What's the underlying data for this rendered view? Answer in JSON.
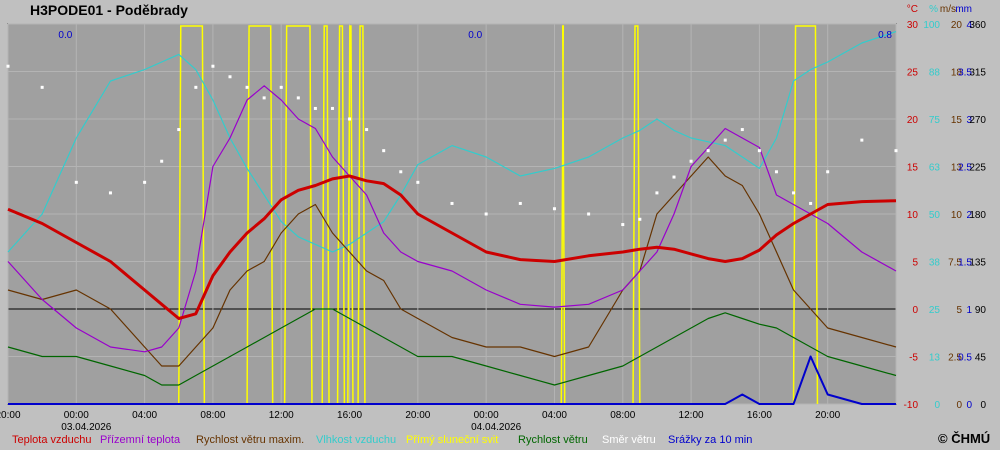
{
  "title": "H3PODE01 - Poděbrady",
  "copyright": "© ČHMÚ",
  "axis_heads": {
    "t": "°C",
    "h": "%",
    "w": "m/s",
    "r": "mm"
  },
  "colors": {
    "temp": "#cc0000",
    "ground": "#9900cc",
    "wind_max": "#663300",
    "humidity": "#33cccc",
    "sun": "#ffff00",
    "wind": "#006600",
    "dir": "#ffffff",
    "rain": "#0000cc",
    "bg": "#a0a0a0"
  },
  "legend": [
    {
      "label": "Teplota vzduchu",
      "color": "#cc0000"
    },
    {
      "label": "Přízemní teplota",
      "color": "#9900cc"
    },
    {
      "label": "Rychlost větru maxim.",
      "color": "#663300"
    },
    {
      "label": "Vlhkost vzduchu",
      "color": "#33cccc"
    },
    {
      "label": "Přímý sluneční svit",
      "color": "#ffff00"
    },
    {
      "label": "Rychlost větru",
      "color": "#006600"
    },
    {
      "label": "Směr větru",
      "color": "#ffffff"
    },
    {
      "label": "Srážky za 10 min",
      "color": "#0000cc"
    }
  ],
  "chart_data": {
    "type": "line",
    "x_tick_labels": [
      "20:00",
      "00:00",
      "04:00",
      "08:00",
      "12:00",
      "16:00",
      "20:00",
      "00:00",
      "04:00",
      "08:00",
      "12:00",
      "16:00",
      "20:00"
    ],
    "date_labels": [
      {
        "at": "00:00",
        "text": "03.04.2026"
      },
      {
        "at": "00:00",
        "text": "04.04.2026"
      }
    ],
    "y_axes": [
      {
        "name": "°C",
        "ticks": [
          "30",
          "25",
          "20",
          "15",
          "10",
          "5",
          "0",
          "-5",
          "-10"
        ]
      },
      {
        "name": "%",
        "ticks": [
          "100",
          "88",
          "75",
          "63",
          "50",
          "38",
          "25",
          "13",
          "0"
        ]
      },
      {
        "name": "m/s",
        "ticks": [
          "20",
          "18",
          "15",
          "13",
          "10",
          "7.5",
          "5",
          "2.5",
          "0"
        ]
      },
      {
        "name": "mm",
        "ticks": [
          "4",
          "3.5",
          "3",
          "2.5",
          "2",
          "1.5",
          "1",
          "0.5",
          "0"
        ]
      },
      {
        "name": "dir",
        "ticks": [
          "360",
          "315",
          "270",
          "225",
          "180",
          "135",
          "90",
          "45",
          "0"
        ]
      }
    ],
    "daily_sums": [
      "0.0",
      "0.0",
      "0.8"
    ],
    "x_hours": [
      -4,
      -2,
      0,
      2,
      4,
      5,
      6,
      7,
      8,
      9,
      10,
      11,
      12,
      13,
      14,
      15,
      16,
      17,
      18,
      19,
      20,
      22,
      24,
      26,
      28,
      30,
      32,
      33,
      34,
      35,
      36,
      37,
      38,
      39,
      40,
      41,
      42,
      43,
      44,
      46,
      48
    ],
    "series": [
      {
        "name": "Teplota vzduchu",
        "key": "temp",
        "values": [
          10.5,
          9,
          7,
          5,
          2,
          0.5,
          -1,
          -0.5,
          3.5,
          6,
          8,
          9.5,
          11.5,
          12.5,
          13,
          13.7,
          14,
          13.5,
          13.2,
          12,
          10,
          8,
          6,
          5.2,
          5.0,
          5.6,
          6.0,
          6.3,
          6.5,
          6.3,
          5.8,
          5.3,
          5.0,
          5.3,
          6.2,
          7.8,
          9.0,
          10.0,
          11.0,
          11.3,
          11.4
        ]
      },
      {
        "name": "Přízemní teplota",
        "key": "ground",
        "values": [
          5,
          1,
          -2,
          -4,
          -4.5,
          -4,
          -2,
          4,
          15,
          18,
          22,
          23.5,
          22,
          20,
          19,
          16,
          14,
          12,
          8,
          6,
          5,
          4,
          2,
          0.5,
          0.2,
          0.5,
          2,
          4,
          6,
          10,
          15,
          17,
          19,
          18,
          17,
          12,
          11,
          10,
          9,
          6,
          4
        ]
      },
      {
        "name": "Rychlost větru maxim.",
        "key": "wind_max",
        "values": [
          6,
          5.5,
          6,
          5,
          3,
          2,
          2,
          3,
          4,
          6,
          7,
          7.5,
          9,
          10,
          10.5,
          9,
          8,
          7,
          6.5,
          5,
          4.5,
          3.5,
          3,
          3,
          2.5,
          3,
          6,
          7,
          10,
          11,
          12,
          13,
          12,
          11.5,
          10,
          8,
          6,
          5,
          4,
          3.5,
          3
        ]
      },
      {
        "name": "Vlhkost vzduchu",
        "key": "humidity",
        "values": [
          40,
          50,
          70,
          85,
          88,
          90,
          92,
          88,
          80,
          70,
          62,
          55,
          48,
          44,
          42,
          40,
          42,
          45,
          48,
          55,
          63,
          68,
          65,
          60,
          62,
          65,
          70,
          72,
          75,
          72,
          70,
          69,
          68,
          65,
          62,
          70,
          85,
          88,
          90,
          95,
          98
        ]
      },
      {
        "name": "Rychlost větru",
        "key": "wind",
        "values": [
          3,
          2.5,
          2.5,
          2,
          1.5,
          1,
          1,
          1.5,
          2,
          2.5,
          3,
          3.5,
          4,
          4.5,
          5,
          5,
          4.5,
          4,
          3.5,
          3,
          2.5,
          2.5,
          2,
          1.5,
          1,
          1.5,
          2,
          2.5,
          3,
          3.5,
          4,
          4.5,
          4.8,
          4.5,
          4.2,
          4,
          3.5,
          3,
          2.5,
          2,
          1.5
        ]
      },
      {
        "name": "Směr větru",
        "key": "dir",
        "values": [
          320,
          300,
          210,
          200,
          210,
          230,
          260,
          300,
          320,
          310,
          300,
          290,
          300,
          290,
          280,
          280,
          270,
          260,
          240,
          220,
          210,
          190,
          180,
          190,
          185,
          180,
          170,
          175,
          200,
          215,
          230,
          240,
          250,
          260,
          240,
          220,
          200,
          190,
          220,
          250,
          240
        ]
      },
      {
        "name": "Srážky za 10 min",
        "key": "rain",
        "values": [
          0,
          0,
          0,
          0,
          0,
          0,
          0,
          0,
          0,
          0,
          0,
          0,
          0,
          0,
          0,
          0,
          0,
          0,
          0,
          0,
          0,
          0,
          0,
          0,
          0,
          0,
          0,
          0,
          0,
          0,
          0,
          0,
          0,
          0.1,
          0,
          0,
          0,
          0.5,
          0.1,
          0,
          0
        ]
      }
    ],
    "sunshine_hours": [
      [
        6,
        7.5
      ],
      [
        10,
        11.5
      ],
      [
        12.2,
        13.8
      ],
      [
        14.4,
        14.8
      ],
      [
        15.3,
        15.7
      ],
      [
        15.9,
        16.2
      ],
      [
        16.5,
        16.9
      ],
      [
        28.4,
        28.6
      ],
      [
        32.6,
        33.0
      ],
      [
        42,
        43.4
      ]
    ],
    "x_range": [
      -4,
      48
    ],
    "temp_range": [
      -10,
      30
    ],
    "grid": true
  }
}
